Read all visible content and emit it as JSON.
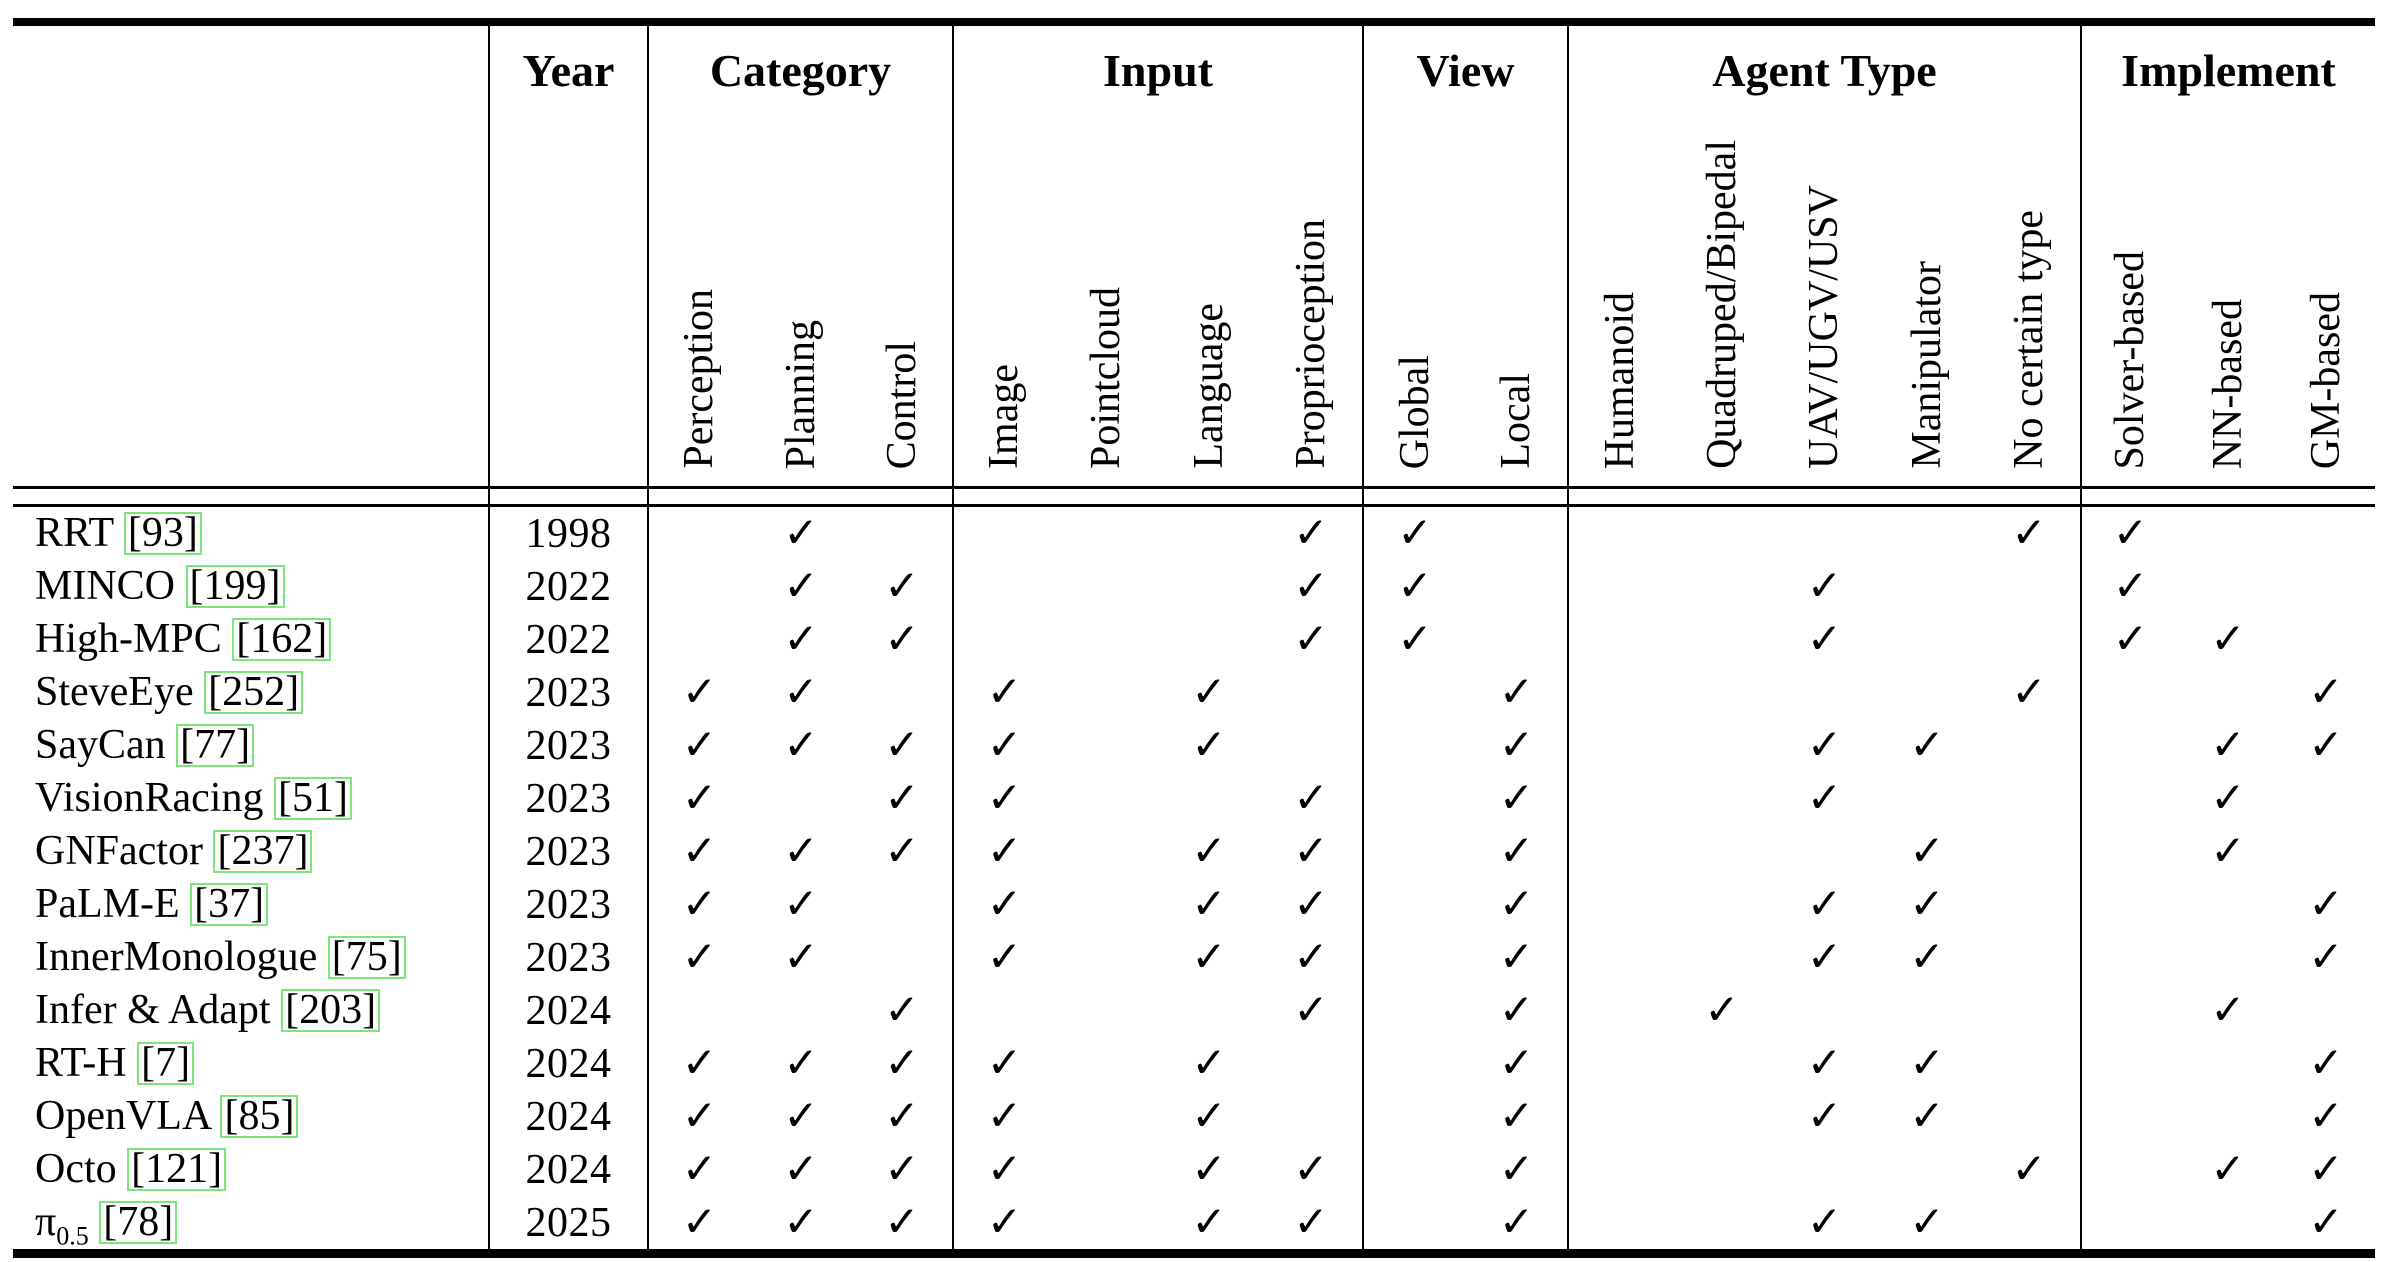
{
  "page": {
    "background": "#ffffff",
    "text_color": "#000000"
  },
  "table": {
    "corner_label": "",
    "year_header": "Year",
    "groups": [
      {
        "label": "Category",
        "cols": 3
      },
      {
        "label": "Input",
        "cols": 4
      },
      {
        "label": "View",
        "cols": 2
      },
      {
        "label": "Agent Type",
        "cols": 5
      },
      {
        "label": "Implement",
        "cols": 3
      }
    ],
    "sub_columns": [
      "Perception",
      "Planning",
      "Control",
      "Image",
      "Pointcloud",
      "Language",
      "Proprioception",
      "Global",
      "Local",
      "Humanoid",
      "Quadruped/Bipedal",
      "UAV/UGV/USV",
      "Manipulator",
      "No certain type",
      "Solver-based",
      "NN-based",
      "GM-based"
    ],
    "check_glyph": "✓",
    "citation_box_color": "#7de57d",
    "rows": [
      {
        "name": "RRT",
        "name_sub": "",
        "cite": "93",
        "year": "1998",
        "checks": [
          0,
          1,
          0,
          0,
          0,
          0,
          1,
          1,
          0,
          0,
          0,
          0,
          0,
          1,
          1,
          0,
          0
        ]
      },
      {
        "name": "MINCO",
        "name_sub": "",
        "cite": "199",
        "year": "2022",
        "checks": [
          0,
          1,
          1,
          0,
          0,
          0,
          1,
          1,
          0,
          0,
          0,
          1,
          0,
          0,
          1,
          0,
          0
        ]
      },
      {
        "name": "High-MPC",
        "name_sub": "",
        "cite": "162",
        "year": "2022",
        "checks": [
          0,
          1,
          1,
          0,
          0,
          0,
          1,
          1,
          0,
          0,
          0,
          1,
          0,
          0,
          1,
          1,
          0
        ]
      },
      {
        "name": "SteveEye",
        "name_sub": "",
        "cite": "252",
        "year": "2023",
        "checks": [
          1,
          1,
          0,
          1,
          0,
          1,
          0,
          0,
          1,
          0,
          0,
          0,
          0,
          1,
          0,
          0,
          1
        ]
      },
      {
        "name": "SayCan",
        "name_sub": "",
        "cite": "77",
        "year": "2023",
        "checks": [
          1,
          1,
          1,
          1,
          0,
          1,
          0,
          0,
          1,
          0,
          0,
          1,
          1,
          0,
          0,
          1,
          1
        ]
      },
      {
        "name": "VisionRacing",
        "name_sub": "",
        "cite": "51",
        "year": "2023",
        "checks": [
          1,
          0,
          1,
          1,
          0,
          0,
          1,
          0,
          1,
          0,
          0,
          1,
          0,
          0,
          0,
          1,
          0
        ]
      },
      {
        "name": "GNFactor",
        "name_sub": "",
        "cite": "237",
        "year": "2023",
        "checks": [
          1,
          1,
          1,
          1,
          0,
          1,
          1,
          0,
          1,
          0,
          0,
          0,
          1,
          0,
          0,
          1,
          0
        ]
      },
      {
        "name": "PaLM-E",
        "name_sub": "",
        "cite": "37",
        "year": "2023",
        "checks": [
          1,
          1,
          0,
          1,
          0,
          1,
          1,
          0,
          1,
          0,
          0,
          1,
          1,
          0,
          0,
          0,
          1
        ]
      },
      {
        "name": "InnerMonologue",
        "name_sub": "",
        "cite": "75",
        "year": "2023",
        "checks": [
          1,
          1,
          0,
          1,
          0,
          1,
          1,
          0,
          1,
          0,
          0,
          1,
          1,
          0,
          0,
          0,
          1
        ]
      },
      {
        "name": "Infer & Adapt",
        "name_sub": "",
        "cite": "203",
        "year": "2024",
        "checks": [
          0,
          0,
          1,
          0,
          0,
          0,
          1,
          0,
          1,
          0,
          1,
          0,
          0,
          0,
          0,
          1,
          0
        ]
      },
      {
        "name": "RT-H",
        "name_sub": "",
        "cite": "7",
        "year": "2024",
        "checks": [
          1,
          1,
          1,
          1,
          0,
          1,
          0,
          0,
          1,
          0,
          0,
          1,
          1,
          0,
          0,
          0,
          1
        ]
      },
      {
        "name": "OpenVLA",
        "name_sub": "",
        "cite": "85",
        "year": "2024",
        "checks": [
          1,
          1,
          1,
          1,
          0,
          1,
          0,
          0,
          1,
          0,
          0,
          1,
          1,
          0,
          0,
          0,
          1
        ]
      },
      {
        "name": "Octo",
        "name_sub": "",
        "cite": "121",
        "year": "2024",
        "checks": [
          1,
          1,
          1,
          1,
          0,
          1,
          1,
          0,
          1,
          0,
          0,
          0,
          0,
          1,
          0,
          1,
          1
        ]
      },
      {
        "name": "π",
        "name_sub": "0.5",
        "cite": "78",
        "year": "2025",
        "checks": [
          1,
          1,
          1,
          1,
          0,
          1,
          1,
          0,
          1,
          0,
          0,
          1,
          1,
          0,
          0,
          0,
          1
        ]
      }
    ]
  }
}
